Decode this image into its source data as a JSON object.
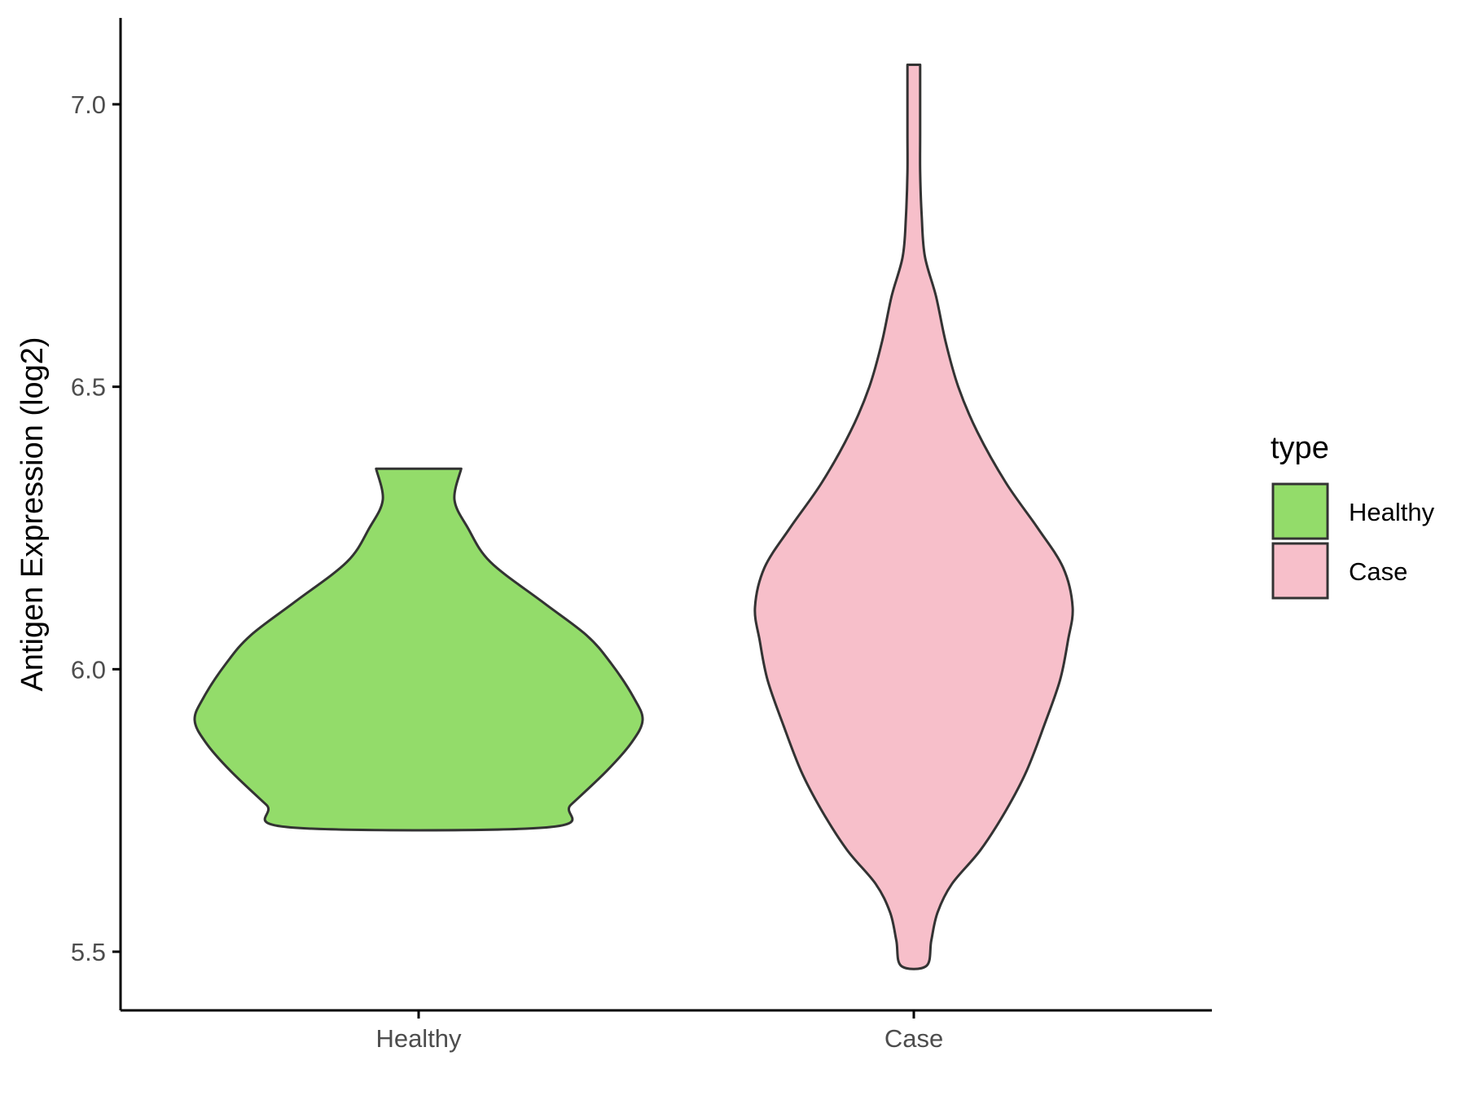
{
  "chart_data": {
    "type": "violin",
    "title": "",
    "xlabel": "",
    "ylabel": "Antigen Expression (log2)",
    "ylim": [
      5.4,
      7.15
    ],
    "yticks": [
      5.5,
      6.0,
      6.5,
      7.0
    ],
    "ytick_labels": [
      "5.5",
      "6.0",
      "6.5",
      "7.0"
    ],
    "categories": [
      "Healthy",
      "Case"
    ],
    "grid": false,
    "legend": {
      "title": "type",
      "placement": "right",
      "entries": [
        "Healthy",
        "Case"
      ]
    },
    "series": [
      {
        "name": "Healthy",
        "color": "#93dc6a",
        "min": 5.72,
        "max": 6.355,
        "density_profile": [
          [
            5.72,
            0.57
          ],
          [
            5.76,
            0.68
          ],
          [
            5.82,
            0.84
          ],
          [
            5.87,
            0.95
          ],
          [
            5.91,
            1.0
          ],
          [
            5.95,
            0.96
          ],
          [
            6.01,
            0.86
          ],
          [
            6.06,
            0.75
          ],
          [
            6.12,
            0.55
          ],
          [
            6.19,
            0.32
          ],
          [
            6.25,
            0.22
          ],
          [
            6.3,
            0.16
          ],
          [
            6.355,
            0.19
          ]
        ]
      },
      {
        "name": "Case",
        "color": "#f7bfca",
        "min": 5.475,
        "max": 7.07,
        "density_profile": [
          [
            5.475,
            0.08
          ],
          [
            5.52,
            0.11
          ],
          [
            5.57,
            0.15
          ],
          [
            5.62,
            0.24
          ],
          [
            5.68,
            0.42
          ],
          [
            5.75,
            0.58
          ],
          [
            5.82,
            0.71
          ],
          [
            5.9,
            0.82
          ],
          [
            5.98,
            0.92
          ],
          [
            6.05,
            0.97
          ],
          [
            6.11,
            1.0
          ],
          [
            6.18,
            0.94
          ],
          [
            6.25,
            0.78
          ],
          [
            6.33,
            0.58
          ],
          [
            6.42,
            0.4
          ],
          [
            6.5,
            0.28
          ],
          [
            6.58,
            0.2
          ],
          [
            6.66,
            0.14
          ],
          [
            6.73,
            0.07
          ],
          [
            6.8,
            0.05
          ],
          [
            6.88,
            0.04
          ],
          [
            6.95,
            0.04
          ],
          [
            7.07,
            0.04
          ]
        ]
      }
    ]
  },
  "colors": {
    "outline": "#333333",
    "axis": "#000000",
    "tick_text": "#4d4d4d"
  }
}
